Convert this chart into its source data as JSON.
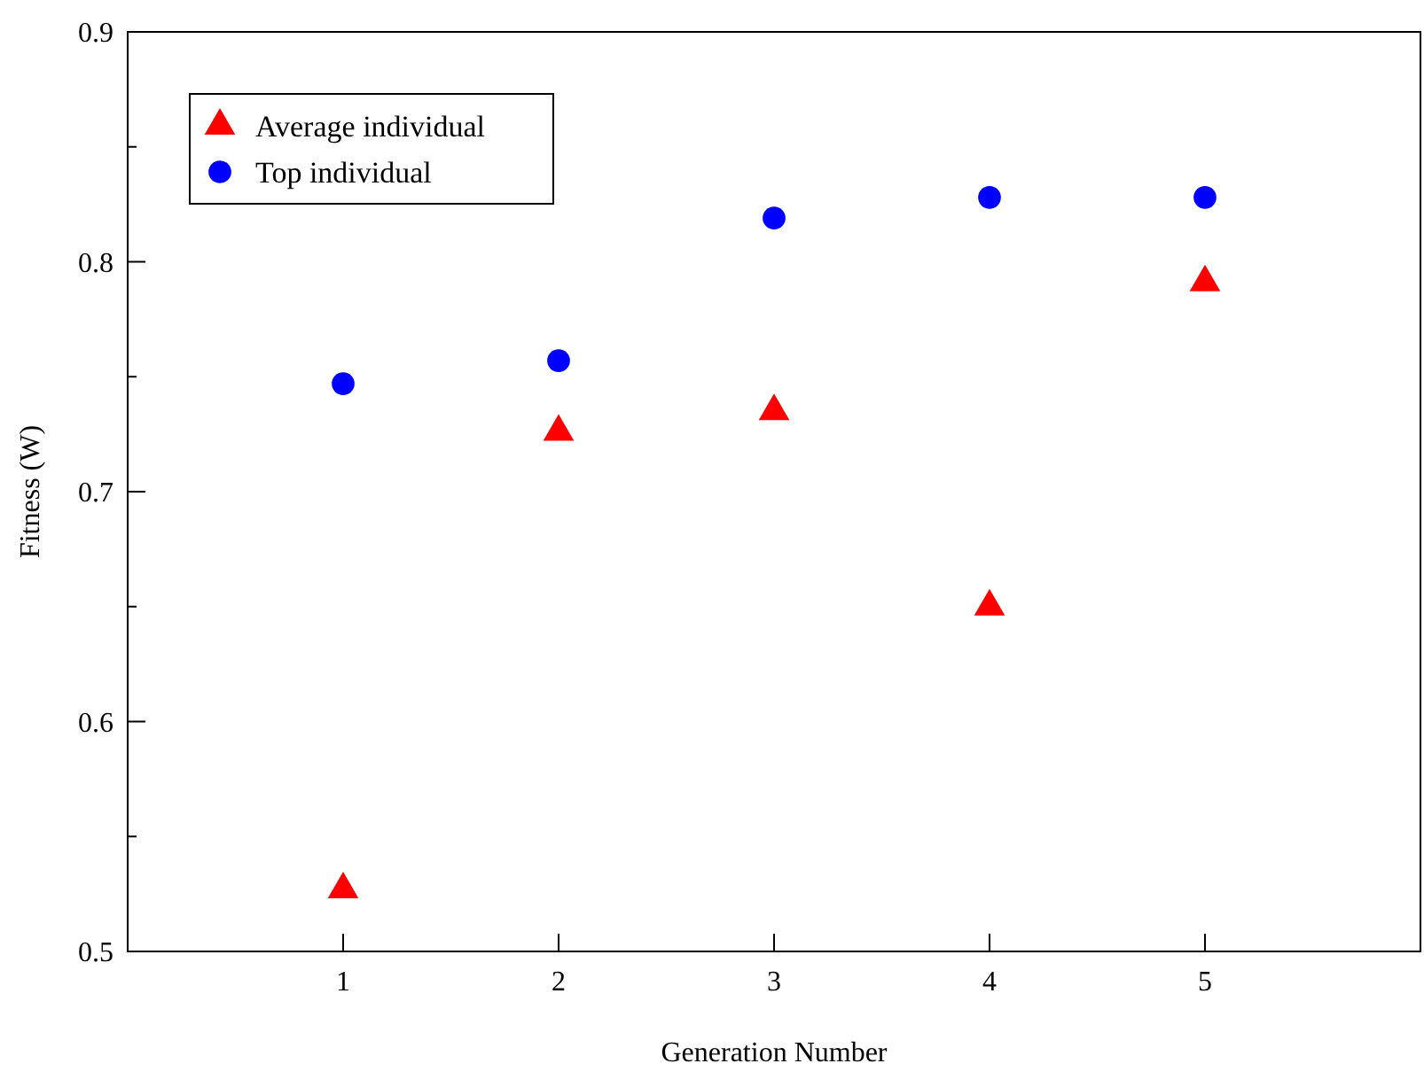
{
  "chart_data": {
    "type": "scatter",
    "xlabel": "Generation Number",
    "ylabel": "Fitness (W)",
    "x": [
      1,
      2,
      3,
      4,
      5
    ],
    "series": [
      {
        "name": "Average individual",
        "color": "#ff0000",
        "marker": "triangle",
        "values": [
          0.527,
          0.726,
          0.735,
          0.65,
          0.791
        ]
      },
      {
        "name": "Top individual",
        "color": "#0000ff",
        "marker": "circle",
        "values": [
          0.747,
          0.757,
          0.819,
          0.828,
          0.828
        ]
      }
    ],
    "xlim": [
      0,
      6
    ],
    "xticks": [
      1,
      2,
      3,
      4,
      5
    ],
    "ylim": [
      0.5,
      0.9
    ],
    "yticks": [
      0.5,
      {
        "value": 0.55,
        "label": null
      },
      0.6,
      {
        "value": 0.65,
        "label": null
      },
      0.7,
      {
        "value": 0.75,
        "label": null
      },
      0.8,
      {
        "value": 0.85,
        "label": null
      },
      0.9
    ],
    "grid": false,
    "legend": "top left"
  }
}
